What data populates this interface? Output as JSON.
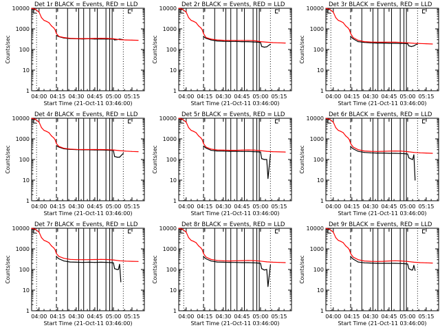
{
  "page_background": "#ffffff",
  "colors": {
    "events": "#000000",
    "lld": "#ff0000",
    "axis": "#000000"
  },
  "shared": {
    "ylabel": "Counts/sec",
    "xlabel": "Start Time (21-Oct-11 03:46:00)",
    "x_tick_labels": [
      "04:00",
      "04:15",
      "04:30",
      "04:45",
      "05:00",
      "05:15"
    ],
    "x_tick_minutes": [
      0,
      15,
      30,
      45,
      60,
      75
    ],
    "y_tick_labels": [
      "1",
      "10",
      "100",
      "1000",
      "10000"
    ],
    "y_scale": "log",
    "ylim": [
      1,
      10000
    ],
    "xlim_minutes_after_0400": [
      -6,
      85
    ],
    "dashed_line_minutes": [
      14
    ],
    "dotted_line_minutes": [
      -2,
      68
    ],
    "solid_vertical_minutes": [
      23,
      32,
      36,
      41,
      47,
      54,
      57,
      59
    ],
    "legend_glyphs": [
      "[",
      "[",
      "["
    ]
  },
  "chart_data": [
    {
      "type": "line",
      "title": "Det 1r BLACK = Events, RED = LLD",
      "series": [
        {
          "name": "Events",
          "color": "#000000",
          "x": [
            14,
            16,
            20,
            25,
            30,
            35,
            40,
            45,
            50,
            55,
            58,
            60,
            61,
            63,
            65,
            68
          ],
          "y": [
            480,
            420,
            360,
            340,
            330,
            325,
            330,
            320,
            325,
            320,
            320,
            320,
            290,
            300,
            320,
            300
          ]
        },
        {
          "name": "LLD",
          "color": "#ff0000",
          "x": [
            -6,
            -3,
            0,
            2,
            4,
            6,
            8,
            10,
            12,
            13,
            14,
            16,
            20,
            25,
            30,
            35,
            40,
            45,
            50,
            55,
            60,
            65,
            70,
            75,
            80
          ],
          "y": [
            10000,
            9000,
            6500,
            3500,
            2600,
            2300,
            2000,
            1400,
            1100,
            900,
            600,
            430,
            380,
            350,
            340,
            340,
            340,
            345,
            350,
            345,
            330,
            300,
            290,
            285,
            280
          ]
        }
      ]
    },
    {
      "type": "line",
      "title": "Det 2r BLACK = Events, RED = LLD",
      "series": [
        {
          "name": "Events",
          "color": "#000000",
          "x": [
            14,
            16,
            20,
            25,
            30,
            35,
            40,
            45,
            50,
            55,
            58,
            60,
            61,
            63,
            65,
            68
          ],
          "y": [
            420,
            350,
            290,
            260,
            250,
            245,
            245,
            240,
            240,
            230,
            225,
            220,
            140,
            130,
            135,
            180
          ]
        },
        {
          "name": "LLD",
          "color": "#ff0000",
          "x": [
            -6,
            -3,
            0,
            2,
            4,
            6,
            8,
            10,
            12,
            13,
            14,
            16,
            20,
            25,
            30,
            35,
            40,
            45,
            50,
            55,
            60,
            65,
            70,
            75,
            80
          ],
          "y": [
            10000,
            9000,
            6500,
            3500,
            2600,
            2300,
            2000,
            1400,
            1100,
            900,
            600,
            380,
            320,
            290,
            280,
            275,
            275,
            275,
            275,
            270,
            240,
            225,
            215,
            210,
            205
          ]
        }
      ]
    },
    {
      "type": "line",
      "title": "Det 3r BLACK = Events, RED = LLD",
      "series": [
        {
          "name": "Events",
          "color": "#000000",
          "x": [
            14,
            16,
            20,
            25,
            30,
            35,
            40,
            45,
            50,
            55,
            58,
            60,
            61,
            63,
            65,
            68
          ],
          "y": [
            430,
            330,
            240,
            220,
            210,
            205,
            205,
            200,
            200,
            195,
            195,
            190,
            150,
            140,
            150,
            190
          ]
        },
        {
          "name": "LLD",
          "color": "#ff0000",
          "x": [
            -6,
            -3,
            0,
            2,
            4,
            6,
            8,
            10,
            12,
            13,
            14,
            16,
            20,
            25,
            30,
            35,
            40,
            45,
            50,
            55,
            60,
            65,
            70,
            75,
            80
          ],
          "y": [
            10000,
            9000,
            6500,
            3500,
            2600,
            2300,
            2000,
            1400,
            1100,
            900,
            600,
            380,
            280,
            240,
            230,
            225,
            225,
            225,
            225,
            220,
            210,
            200,
            195,
            190,
            185
          ]
        }
      ]
    },
    {
      "type": "line",
      "title": "Det 4r BLACK = Events, RED = LLD",
      "series": [
        {
          "name": "Events",
          "color": "#000000",
          "x": [
            14,
            16,
            20,
            25,
            30,
            35,
            40,
            45,
            50,
            55,
            58,
            60,
            61,
            63,
            65,
            68
          ],
          "y": [
            470,
            400,
            330,
            310,
            300,
            295,
            295,
            290,
            290,
            285,
            280,
            275,
            140,
            130,
            130,
            200
          ]
        },
        {
          "name": "LLD",
          "color": "#ff0000",
          "x": [
            -6,
            -3,
            0,
            2,
            4,
            6,
            8,
            10,
            12,
            13,
            14,
            16,
            20,
            25,
            30,
            35,
            40,
            45,
            50,
            55,
            60,
            65,
            70,
            75,
            80
          ],
          "y": [
            10000,
            9000,
            6500,
            3500,
            2600,
            2300,
            2000,
            1400,
            1100,
            900,
            600,
            430,
            350,
            320,
            310,
            305,
            305,
            305,
            305,
            300,
            290,
            270,
            255,
            245,
            240
          ]
        }
      ]
    },
    {
      "type": "line",
      "title": "Det 5r BLACK = Events, RED = LLD",
      "series": [
        {
          "name": "Events",
          "color": "#000000",
          "x": [
            14,
            16,
            20,
            25,
            30,
            35,
            40,
            45,
            50,
            55,
            58,
            60,
            61,
            63,
            65,
            66,
            68
          ],
          "y": [
            450,
            360,
            280,
            260,
            255,
            250,
            250,
            245,
            245,
            240,
            235,
            230,
            110,
            100,
            100,
            12,
            180
          ]
        },
        {
          "name": "LLD",
          "color": "#ff0000",
          "x": [
            -6,
            -3,
            0,
            2,
            4,
            6,
            8,
            10,
            12,
            13,
            14,
            16,
            20,
            25,
            30,
            35,
            40,
            45,
            50,
            55,
            60,
            65,
            70,
            75,
            80
          ],
          "y": [
            10000,
            9000,
            6500,
            3500,
            2600,
            2300,
            2000,
            1400,
            1100,
            900,
            600,
            400,
            320,
            290,
            285,
            280,
            280,
            285,
            290,
            285,
            270,
            250,
            240,
            235,
            230
          ]
        }
      ]
    },
    {
      "type": "line",
      "title": "Det 6r BLACK = Events, RED = LLD",
      "series": [
        {
          "name": "Events",
          "color": "#000000",
          "x": [
            14,
            16,
            20,
            25,
            30,
            35,
            40,
            45,
            50,
            55,
            58,
            60,
            61,
            63,
            64,
            65,
            66
          ],
          "y": [
            420,
            330,
            250,
            220,
            210,
            205,
            205,
            200,
            200,
            195,
            190,
            185,
            120,
            105,
            100,
            170,
            10
          ]
        },
        {
          "name": "LLD",
          "color": "#ff0000",
          "x": [
            -6,
            -3,
            0,
            2,
            4,
            6,
            8,
            10,
            12,
            13,
            14,
            16,
            20,
            25,
            30,
            35,
            40,
            45,
            50,
            55,
            60,
            65,
            70,
            75,
            80
          ],
          "y": [
            10000,
            9000,
            6500,
            3500,
            2600,
            2300,
            2000,
            1400,
            1100,
            900,
            600,
            400,
            300,
            260,
            250,
            245,
            250,
            255,
            260,
            255,
            240,
            220,
            210,
            205,
            200
          ]
        }
      ]
    },
    {
      "type": "line",
      "title": "Det 7r BLACK = Events, RED = LLD",
      "series": [
        {
          "name": "Events",
          "color": "#000000",
          "x": [
            14,
            16,
            20,
            25,
            30,
            35,
            40,
            45,
            50,
            55,
            58,
            60,
            61,
            63,
            64,
            65,
            66
          ],
          "y": [
            420,
            330,
            260,
            230,
            225,
            220,
            225,
            220,
            225,
            220,
            215,
            210,
            110,
            100,
            100,
            180,
            25
          ]
        },
        {
          "name": "LLD",
          "color": "#ff0000",
          "x": [
            -6,
            -3,
            0,
            2,
            4,
            6,
            8,
            10,
            12,
            13,
            14,
            16,
            20,
            25,
            30,
            35,
            40,
            45,
            50,
            55,
            60,
            65,
            70,
            75,
            80
          ],
          "y": [
            10000,
            9000,
            6500,
            3500,
            2600,
            2300,
            2000,
            1400,
            1100,
            900,
            600,
            430,
            350,
            310,
            300,
            300,
            300,
            305,
            310,
            305,
            290,
            265,
            255,
            250,
            245
          ]
        }
      ]
    },
    {
      "type": "line",
      "title": "Det 8r BLACK = Events, RED = LLD",
      "series": [
        {
          "name": "Events",
          "color": "#000000",
          "x": [
            14,
            16,
            20,
            25,
            30,
            35,
            40,
            45,
            50,
            55,
            58,
            60,
            61,
            63,
            65,
            66,
            68
          ],
          "y": [
            420,
            330,
            260,
            230,
            225,
            220,
            220,
            215,
            215,
            210,
            205,
            200,
            110,
            95,
            100,
            15,
            170
          ]
        },
        {
          "name": "LLD",
          "color": "#ff0000",
          "x": [
            -6,
            -3,
            0,
            2,
            4,
            6,
            8,
            10,
            12,
            13,
            14,
            16,
            20,
            25,
            30,
            35,
            40,
            45,
            50,
            55,
            60,
            65,
            70,
            75,
            80
          ],
          "y": [
            10000,
            9000,
            6500,
            3500,
            2600,
            2300,
            2000,
            1400,
            1100,
            900,
            600,
            400,
            310,
            275,
            265,
            260,
            265,
            270,
            275,
            270,
            255,
            235,
            225,
            220,
            215
          ]
        }
      ]
    },
    {
      "type": "line",
      "title": "Det 9r BLACK = Events, RED = LLD",
      "series": [
        {
          "name": "Events",
          "color": "#000000",
          "x": [
            14,
            16,
            20,
            25,
            30,
            35,
            40,
            45,
            50,
            55,
            58,
            60,
            61,
            63,
            64,
            65,
            66
          ],
          "y": [
            420,
            320,
            230,
            210,
            205,
            200,
            200,
            200,
            200,
            195,
            190,
            185,
            110,
            95,
            95,
            160,
            90
          ]
        },
        {
          "name": "LLD",
          "color": "#ff0000",
          "x": [
            -6,
            -3,
            0,
            2,
            4,
            6,
            8,
            10,
            12,
            13,
            14,
            16,
            20,
            25,
            30,
            35,
            40,
            45,
            50,
            55,
            60,
            65,
            70,
            75,
            80
          ],
          "y": [
            10000,
            9000,
            6500,
            3500,
            2600,
            2300,
            2000,
            1400,
            1100,
            900,
            600,
            400,
            300,
            260,
            250,
            245,
            250,
            260,
            265,
            260,
            245,
            225,
            215,
            210,
            205
          ]
        }
      ]
    }
  ]
}
